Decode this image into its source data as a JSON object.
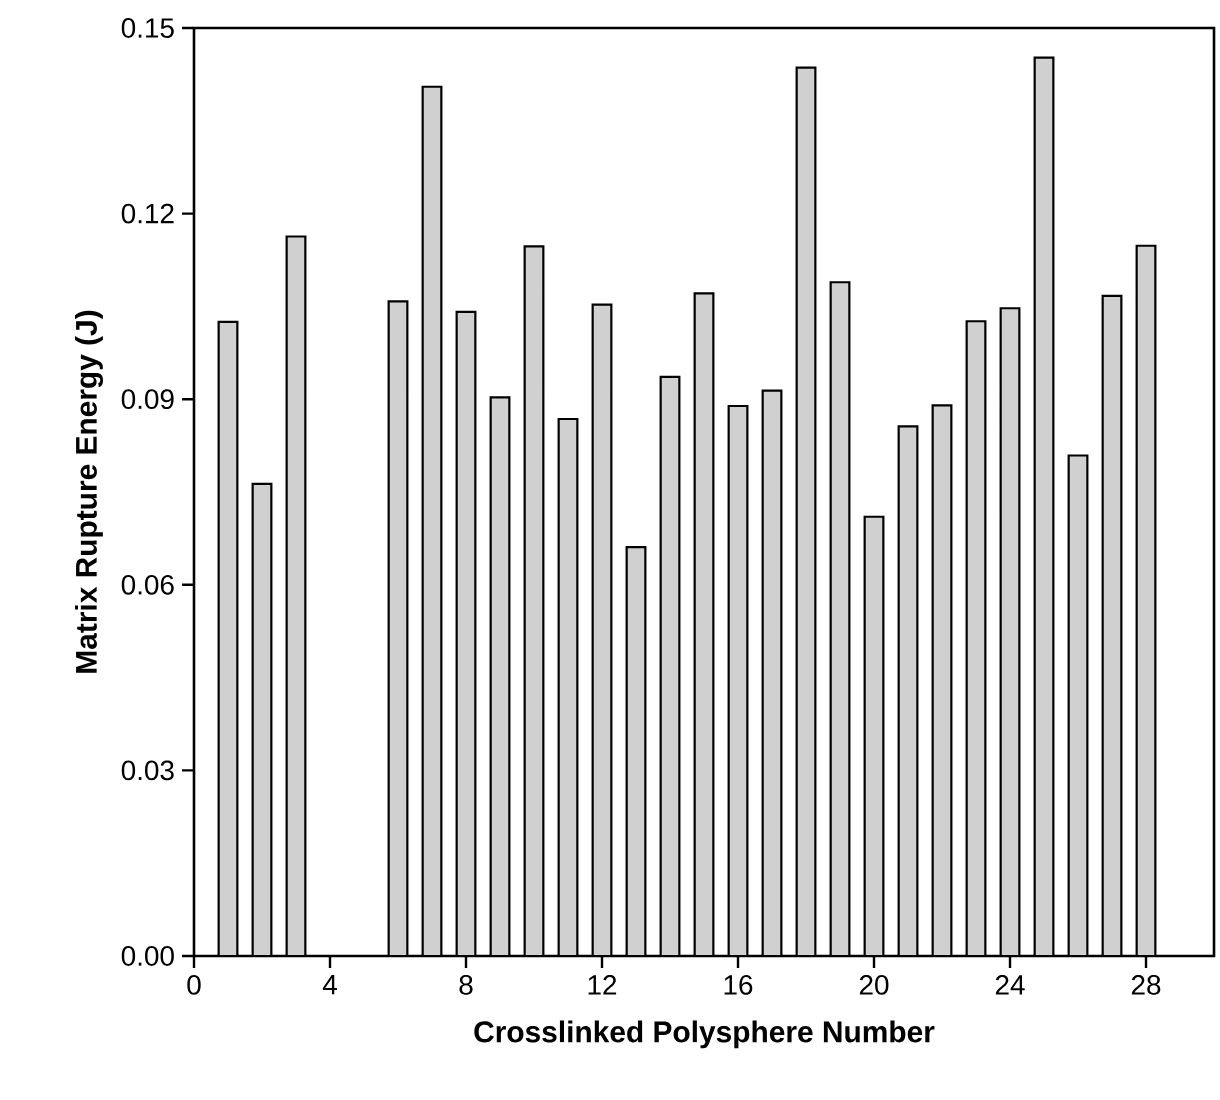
{
  "chart_data": {
    "type": "bar",
    "xlabel": "Crosslinked Polysphere Number",
    "ylabel": "Matrix Rupture Energy (J)",
    "x": [
      1,
      2,
      3,
      6,
      7,
      8,
      9,
      10,
      11,
      12,
      13,
      14,
      15,
      16,
      17,
      18,
      19,
      20,
      21,
      22,
      23,
      24,
      25,
      26,
      27,
      28
    ],
    "values": [
      0.1025,
      0.0763,
      0.1163,
      0.1058,
      0.1405,
      0.1041,
      0.0903,
      0.1147,
      0.0868,
      0.1053,
      0.0661,
      0.0936,
      0.1071,
      0.0889,
      0.0914,
      0.1436,
      0.1089,
      0.071,
      0.0856,
      0.089,
      0.1026,
      0.1047,
      0.1452,
      0.0809,
      0.1067,
      0.1148
    ],
    "color": "#d0d0d0",
    "xlim": [
      0,
      30
    ],
    "xticks": [
      0,
      4,
      8,
      12,
      16,
      20,
      24,
      28
    ],
    "ylim": [
      0,
      0.15
    ],
    "yticks": [
      {
        "value": 0,
        "label": "0.00"
      },
      {
        "value": 0.03,
        "label": "0.03"
      },
      {
        "value": 0.06,
        "label": "0.06"
      },
      {
        "value": 0.09,
        "label": "0.09"
      },
      {
        "value": 0.12,
        "label": "0.12"
      },
      {
        "value": 0.15,
        "label": "0.15"
      }
    ],
    "tick_labels": "xy"
  }
}
